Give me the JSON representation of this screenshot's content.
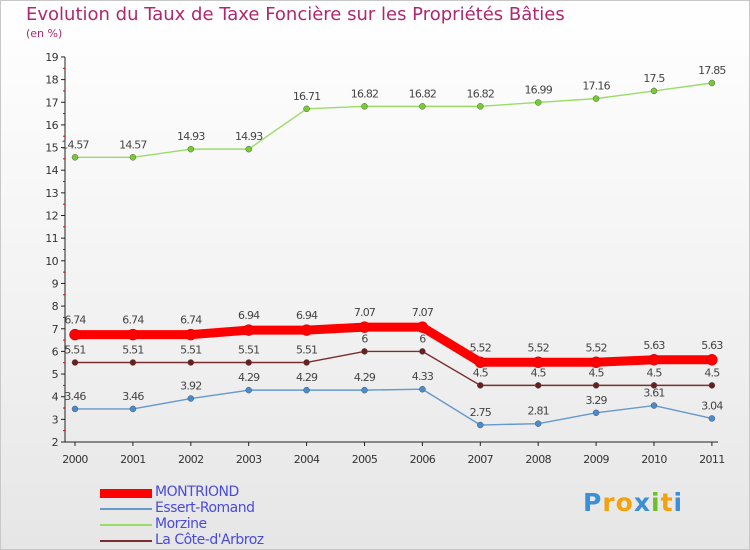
{
  "chart_data": {
    "type": "line",
    "title": "Evolution du Taux de Taxe Foncière sur les Propriétés Bâties",
    "ylabel": "(en %)",
    "xlabel": "",
    "ylim": [
      2,
      19
    ],
    "yticks": [
      2,
      3,
      4,
      5,
      6,
      7,
      8,
      9,
      10,
      11,
      12,
      13,
      14,
      15,
      16,
      17,
      18,
      19
    ],
    "x": [
      "2000",
      "2001",
      "2002",
      "2003",
      "2004",
      "2005",
      "2006",
      "2007",
      "2008",
      "2009",
      "2010",
      "2011"
    ],
    "series": [
      {
        "name": "Morzine",
        "color": "#99dd66",
        "marker": "#77cc33",
        "values": [
          14.57,
          14.57,
          14.93,
          14.93,
          16.71,
          16.82,
          16.82,
          16.82,
          16.99,
          17.16,
          17.5,
          17.85
        ],
        "labels": [
          "14.57",
          "14.57",
          "14.93",
          "14.93",
          "16.71",
          "16.82",
          "16.82",
          "16.82",
          "16.99",
          "17.16",
          "17.5",
          "17.85"
        ]
      },
      {
        "name": "La Côte-d'Arbroz",
        "color": "#7a2e2e",
        "marker": "#6a1f1f",
        "values": [
          5.51,
          5.51,
          5.51,
          5.51,
          5.51,
          6,
          6,
          4.5,
          4.5,
          4.5,
          4.5,
          4.5
        ],
        "labels": [
          "5.51",
          "5.51",
          "5.51",
          "5.51",
          "5.51",
          "6",
          "6",
          "4.5",
          "4.5",
          "4.5",
          "4.5",
          "4.5"
        ]
      },
      {
        "name": "Essert-Romand",
        "color": "#6699cc",
        "marker": "#4a8ad0",
        "values": [
          3.46,
          3.46,
          3.92,
          4.29,
          4.29,
          4.29,
          4.33,
          2.75,
          2.81,
          3.29,
          3.61,
          3.04
        ],
        "labels": [
          "3.46",
          "3.46",
          "3.92",
          "4.29",
          "4.29",
          "4.29",
          "4.33",
          "2.75",
          "2.81",
          "3.29",
          "3.61",
          "3.04"
        ]
      },
      {
        "name": "MONTRIOND",
        "color": "#ff0000",
        "marker": "#ff0000",
        "values": [
          6.74,
          6.74,
          6.74,
          6.94,
          6.94,
          7.07,
          7.07,
          5.52,
          5.52,
          5.52,
          5.63,
          5.63
        ],
        "labels": [
          "6.74",
          "6.74",
          "6.74",
          "6.94",
          "6.94",
          "7.07",
          "7.07",
          "5.52",
          "5.52",
          "5.52",
          "5.63",
          "5.63"
        ]
      }
    ],
    "legend": [
      {
        "name": "MONTRIOND",
        "color": "#ff0000"
      },
      {
        "name": "Essert-Romand",
        "color": "#6699cc"
      },
      {
        "name": "Morzine",
        "color": "#99dd66"
      },
      {
        "name": "La Côte-d'Arbroz",
        "color": "#7a2e2e"
      }
    ],
    "legend_position": "bottom-left",
    "grid": false
  },
  "brand": {
    "letters": [
      "P",
      "r",
      "o",
      "x",
      "i",
      "t",
      "i"
    ],
    "colors": [
      "#3a8fd6",
      "#f2a20c",
      "#f2a20c",
      "#3a8fd6",
      "#6cc02a",
      "#f2a20c",
      "#3a8fd6"
    ]
  }
}
